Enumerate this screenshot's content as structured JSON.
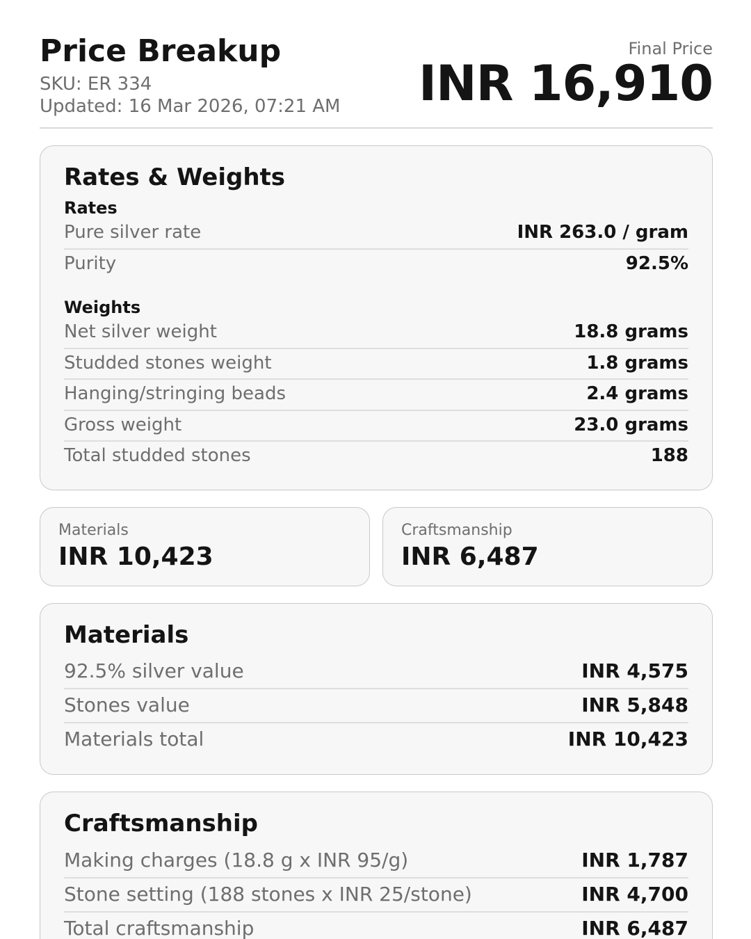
{
  "header": {
    "title": "Price Breakup",
    "sku": "SKU: ER 334",
    "updated": "Updated: 16 Mar 2026, 07:21 AM",
    "final_price_label": "Final Price",
    "final_price_value": "INR 16,910"
  },
  "rates_weights": {
    "title": "Rates & Weights",
    "sections": [
      {
        "title": "Rates",
        "rows": [
          {
            "label": "Pure silver rate",
            "value": "INR 263.0 / gram"
          },
          {
            "label": "Purity",
            "value": "92.5%"
          }
        ]
      },
      {
        "title": "Weights",
        "rows": [
          {
            "label": "Net silver weight",
            "value": "18.8 grams"
          },
          {
            "label": "Studded stones weight",
            "value": "1.8 grams"
          },
          {
            "label": "Hanging/stringing beads",
            "value": "2.4 grams"
          },
          {
            "label": "Gross weight",
            "value": "23.0 grams"
          },
          {
            "label": "Total studded stones",
            "value": "188"
          }
        ]
      }
    ]
  },
  "summary_cards": [
    {
      "label": "Materials",
      "value": "INR 10,423"
    },
    {
      "label": "Craftsmanship",
      "value": "INR 6,487"
    }
  ],
  "materials": {
    "title": "Materials",
    "rows": [
      {
        "label": "92.5% silver value",
        "value": "INR 4,575"
      },
      {
        "label": "Stones value",
        "value": "INR 5,848"
      },
      {
        "label": "Materials total",
        "value": "INR 10,423"
      }
    ]
  },
  "craftsmanship": {
    "title": "Craftsmanship",
    "rows": [
      {
        "label": "Making charges (18.8 g x INR 95/g)",
        "value": "INR 1,787"
      },
      {
        "label": "Stone setting (188 stones x INR 25/stone)",
        "value": "INR 4,700"
      },
      {
        "label": "Total craftsmanship",
        "value": "INR 6,487"
      }
    ]
  },
  "colors": {
    "text_primary": "#141414",
    "text_secondary": "#6e6e6e",
    "card_background": "#f7f7f7",
    "card_border": "#c9c9c9",
    "divider": "#dedede",
    "page_background": "#ffffff"
  }
}
